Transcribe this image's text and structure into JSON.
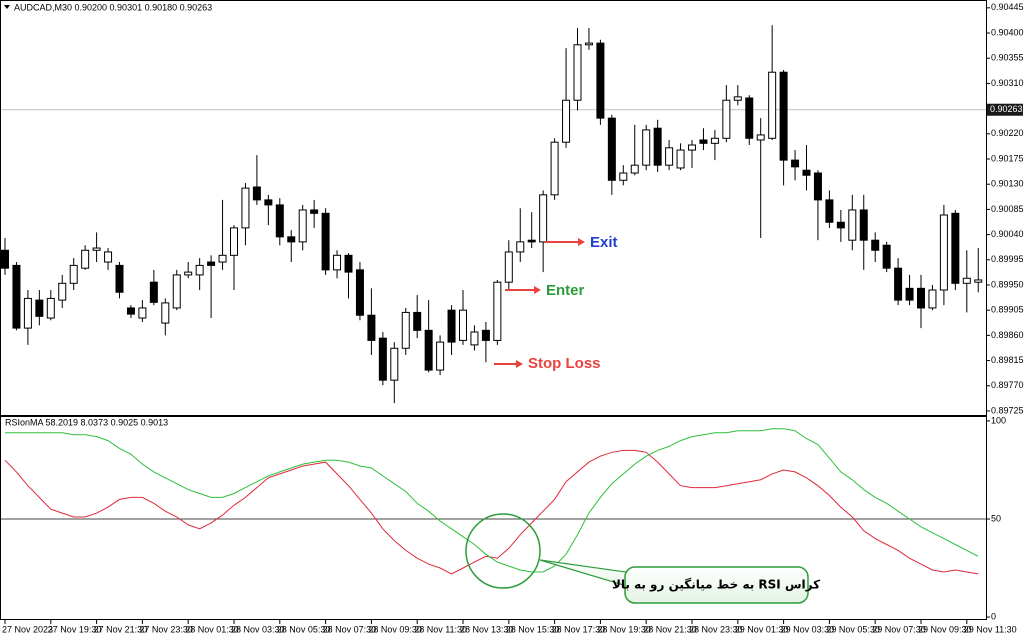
{
  "chart_data": [
    {
      "type": "candlestick",
      "title": "AUDCAD,M30 0.90200 0.90301 0.90180 0.90263",
      "up_color": "#ffffff",
      "down_color": "#000000",
      "ylim": [
        0.89716,
        0.90459
      ],
      "yticks": [
        0.90445,
        {
          "value": 0.904,
          "label": "0.90400"
        },
        0.90355,
        {
          "value": 0.9031,
          "label": "0.90310"
        },
        {
          "value": 0.9022,
          "label": "0.90220"
        },
        0.90175,
        {
          "value": 0.9013,
          "label": "0.90130"
        },
        0.90085,
        {
          "value": 0.9004,
          "label": "0.90040"
        },
        0.89995,
        {
          "value": 0.8995,
          "label": "0.89950"
        },
        0.89905,
        {
          "value": 0.8986,
          "label": "0.89860"
        },
        0.89815,
        {
          "value": 0.8977,
          "label": "0.89770"
        },
        0.89725
      ],
      "price_line": 0.90263,
      "annotations": [
        "Exit",
        "Enter",
        "Stop Loss"
      ],
      "categories": [
        "27 Nov 2023",
        null,
        null,
        null,
        "27 Nov 19:30",
        null,
        null,
        null,
        "27 Nov 21:30",
        null,
        null,
        null,
        "27 Nov 23:30",
        null,
        null,
        null,
        "28 Nov 01:30",
        null,
        null,
        null,
        "28 Nov 03:30",
        null,
        null,
        null,
        "28 Nov 05:30",
        null,
        null,
        null,
        "28 Nov 07:30",
        null,
        null,
        null,
        "28 Nov 09:30",
        null,
        null,
        null,
        "28 Nov 11:30",
        null,
        null,
        null,
        "28 Nov 13:30",
        null,
        null,
        null,
        "28 Nov 15:30",
        null,
        null,
        null,
        "28 Nov 17:30",
        null,
        null,
        null,
        "28 Nov 19:30",
        null,
        null,
        null,
        "28 Nov 21:30",
        null,
        null,
        null,
        "28 Nov 23:30",
        null,
        null,
        null,
        "29 Nov 01:30",
        null,
        null,
        null,
        "29 Nov 03:30",
        null,
        null,
        null,
        "29 Nov 05:30",
        null,
        null,
        null,
        "29 Nov 07:30",
        null,
        null,
        null,
        "29 Nov 09:30",
        null,
        null,
        null,
        "29 Nov 11:30",
        null
      ],
      "ohlc": [
        [
          0.90012,
          0.90034,
          0.89968,
          0.8998
        ],
        [
          0.89985,
          0.89991,
          0.89869,
          0.89873
        ],
        [
          0.89873,
          0.89941,
          0.89843,
          0.89926
        ],
        [
          0.89923,
          0.89941,
          0.89878,
          0.89894
        ],
        [
          0.89891,
          0.89941,
          0.89887,
          0.89926
        ],
        [
          0.89923,
          0.89968,
          0.89909,
          0.89953
        ],
        [
          0.89953,
          0.89998,
          0.89941,
          0.89985
        ],
        [
          0.8998,
          0.90021,
          0.89977,
          0.90012
        ],
        [
          0.90012,
          0.90044,
          0.89991,
          0.90016
        ],
        [
          0.89991,
          0.90016,
          0.89977,
          0.90009
        ],
        [
          0.89985,
          0.89991,
          0.89926,
          0.89937
        ],
        [
          0.89909,
          0.89914,
          0.89891,
          0.89898
        ],
        [
          0.89891,
          0.89923,
          0.89884,
          0.89909
        ],
        [
          0.89955,
          0.89977,
          0.89914,
          0.89919
        ],
        [
          0.89882,
          0.89926,
          0.8986,
          0.89918
        ],
        [
          0.89909,
          0.89977,
          0.89905,
          0.89968
        ],
        [
          0.89968,
          0.89991,
          0.89962,
          0.89973
        ],
        [
          0.89968,
          0.89998,
          0.89941,
          0.89985
        ],
        [
          0.89991,
          0.90003,
          0.89891,
          0.89985
        ],
        [
          0.89991,
          0.90102,
          0.89977,
          0.90003
        ],
        [
          0.90003,
          0.90057,
          0.89941,
          0.90052
        ],
        [
          0.90052,
          0.90132,
          0.90021,
          0.90123
        ],
        [
          0.90125,
          0.90182,
          0.90093,
          0.90102
        ],
        [
          0.90102,
          0.90111,
          0.90057,
          0.90093
        ],
        [
          0.90093,
          0.90105,
          0.90021,
          0.90036
        ],
        [
          0.90036,
          0.90048,
          0.89991,
          0.90027
        ],
        [
          0.90027,
          0.90093,
          0.90012,
          0.90084
        ],
        [
          0.90084,
          0.90102,
          0.90052,
          0.90078
        ],
        [
          0.90078,
          0.90087,
          0.89968,
          0.89977
        ],
        [
          0.89977,
          0.90012,
          0.89962,
          0.90003
        ],
        [
          0.90003,
          0.90007,
          0.89926,
          0.89973
        ],
        [
          0.89977,
          0.89991,
          0.89887,
          0.89896
        ],
        [
          0.89896,
          0.89944,
          0.89825,
          0.89851
        ],
        [
          0.89855,
          0.89866,
          0.89771,
          0.8978
        ],
        [
          0.8978,
          0.89848,
          0.89739,
          0.89837
        ],
        [
          0.89837,
          0.89909,
          0.89825,
          0.89901
        ],
        [
          0.89901,
          0.89932,
          0.89855,
          0.89869
        ],
        [
          0.89869,
          0.89923,
          0.89794,
          0.89798
        ],
        [
          0.89798,
          0.8986,
          0.89789,
          0.89848
        ],
        [
          0.89905,
          0.89914,
          0.89825,
          0.89848
        ],
        [
          0.89851,
          0.89941,
          0.89843,
          0.89905
        ],
        [
          0.89843,
          0.89878,
          0.89833,
          0.89866
        ],
        [
          0.89869,
          0.89884,
          0.89812,
          0.89851
        ],
        [
          0.89851,
          0.89959,
          0.89843,
          0.89955
        ],
        [
          0.89955,
          0.9003,
          0.89941,
          0.90009
        ],
        [
          0.90009,
          0.90087,
          0.89991,
          0.90027
        ],
        [
          0.9003,
          0.9008,
          0.90016,
          0.90027
        ],
        [
          0.90027,
          0.90119,
          0.89973,
          0.90111
        ],
        [
          0.90111,
          0.90212,
          0.90102,
          0.90205
        ],
        [
          0.90205,
          0.90373,
          0.90195,
          0.9028
        ],
        [
          0.9028,
          0.90409,
          0.90262,
          0.90379
        ],
        [
          0.90379,
          0.90409,
          0.9037,
          0.90382
        ],
        [
          0.90382,
          0.90388,
          0.90236,
          0.90248
        ],
        [
          0.90248,
          0.90254,
          0.90111,
          0.90137
        ],
        [
          0.90137,
          0.90164,
          0.90128,
          0.9015
        ],
        [
          0.9015,
          0.90236,
          0.90146,
          0.90164
        ],
        [
          0.90164,
          0.90236,
          0.90155,
          0.90227
        ],
        [
          0.9023,
          0.90245,
          0.90152,
          0.90164
        ],
        [
          0.90164,
          0.90209,
          0.90155,
          0.90195
        ],
        [
          0.90159,
          0.90203,
          0.90155,
          0.90191
        ],
        [
          0.90191,
          0.90209,
          0.90159,
          0.902
        ],
        [
          0.90209,
          0.9023,
          0.90191,
          0.90203
        ],
        [
          0.90203,
          0.90227,
          0.90173,
          0.90212
        ],
        [
          0.90212,
          0.90307,
          0.90205,
          0.9028
        ],
        [
          0.9028,
          0.90307,
          0.90271,
          0.90286
        ],
        [
          0.90284,
          0.90289,
          0.902,
          0.90212
        ],
        [
          0.90209,
          0.90248,
          0.90034,
          0.90218
        ],
        [
          0.90212,
          0.90414,
          0.90209,
          0.9033
        ],
        [
          0.9033,
          0.90334,
          0.90128,
          0.90173
        ],
        [
          0.90173,
          0.90191,
          0.90137,
          0.90161
        ],
        [
          0.90155,
          0.902,
          0.90119,
          0.90146
        ],
        [
          0.9015,
          0.90155,
          0.9003,
          0.90102
        ],
        [
          0.90102,
          0.90119,
          0.90052,
          0.90062
        ],
        [
          0.90062,
          0.90084,
          0.90027,
          0.90052
        ],
        [
          0.9003,
          0.90111,
          0.90012,
          0.90084
        ],
        [
          0.90084,
          0.90111,
          0.89977,
          0.9003
        ],
        [
          0.9003,
          0.90044,
          0.89991,
          0.90012
        ],
        [
          0.90021,
          0.90027,
          0.89973,
          0.8998
        ],
        [
          0.8998,
          0.89998,
          0.89914,
          0.89923
        ],
        [
          0.89944,
          0.89968,
          0.89914,
          0.89923
        ],
        [
          0.89944,
          0.89968,
          0.89873,
          0.89909
        ],
        [
          0.89909,
          0.8995,
          0.89905,
          0.89941
        ],
        [
          0.89941,
          0.90093,
          0.89914,
          0.90075
        ],
        [
          0.90078,
          0.90084,
          0.89941,
          0.89953
        ],
        [
          0.89953,
          0.90012,
          0.89901,
          0.89962
        ],
        [
          0.89955,
          0.90016,
          0.89937,
          0.89959
        ]
      ]
    },
    {
      "type": "line",
      "title": "RSIonMA 58.2019 8.0373 0.9025 0.9013",
      "ylim": [
        -1.5,
        101.5
      ],
      "yticks": [
        0,
        50,
        100
      ],
      "levels": [
        50
      ],
      "annotation": "کراس RSI به خط میانگین رو به بالا",
      "series": [
        {
          "color": "#e0283c",
          "values": [
            80,
            74,
            67,
            61,
            55,
            53,
            51,
            51,
            53,
            56,
            60,
            61,
            61,
            58,
            54,
            51,
            47,
            45,
            48,
            52,
            57,
            61,
            66,
            71,
            73,
            75,
            77,
            78,
            79,
            73,
            67,
            60,
            53,
            45,
            39,
            34,
            30,
            27,
            25,
            22,
            25,
            28,
            31,
            30,
            35,
            42,
            48,
            54,
            60,
            69,
            74,
            79,
            82,
            84,
            85,
            85,
            84,
            79,
            73,
            67,
            66,
            66,
            66,
            67,
            68,
            69,
            70,
            73,
            75,
            74,
            71,
            67,
            62,
            56,
            51,
            44,
            40,
            37,
            34,
            30,
            27,
            24,
            23,
            24,
            23,
            22
          ]
        },
        {
          "color": "#2fbf3a",
          "values": [
            94,
            94,
            94,
            94,
            94,
            94,
            93,
            93,
            92,
            90,
            86,
            83,
            78,
            74,
            71,
            68,
            65,
            63,
            61,
            61,
            63,
            66,
            69,
            72,
            74,
            76,
            78,
            79,
            80,
            80,
            79,
            77,
            76,
            72,
            68,
            64,
            58,
            54,
            49,
            45,
            41,
            37,
            32,
            28,
            26,
            24,
            23,
            23,
            26,
            32,
            42,
            53,
            61,
            68,
            73,
            78,
            82,
            85,
            87,
            90,
            92,
            93,
            94,
            94,
            95,
            95,
            95,
            96,
            96,
            95,
            91,
            88,
            81,
            74,
            70,
            65,
            61,
            58,
            54,
            50,
            46,
            43,
            40,
            37,
            34,
            31
          ]
        }
      ]
    }
  ]
}
